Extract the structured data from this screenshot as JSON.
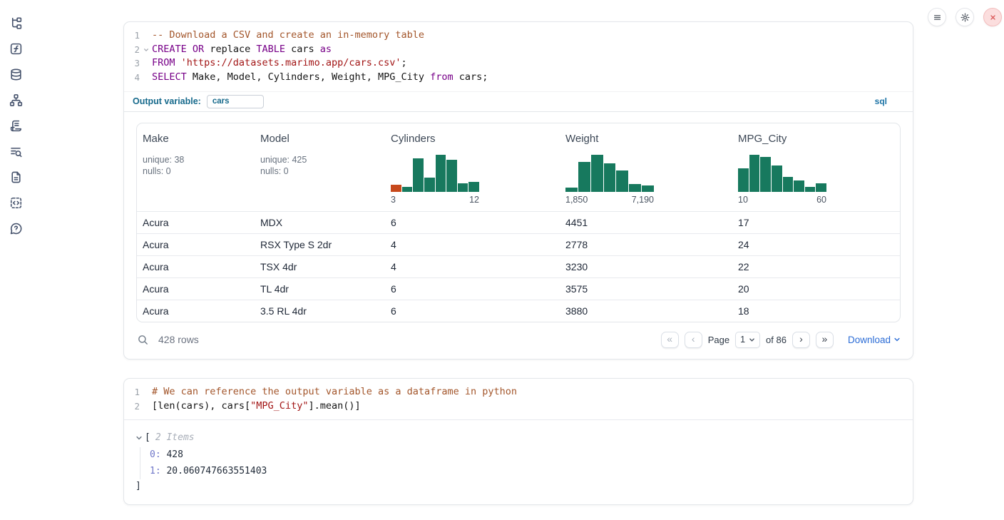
{
  "colors": {
    "accent_teal": "#176a8c",
    "hist_green": "#17795e",
    "hist_orange": "#c7491c",
    "link_blue": "#2b6cd6",
    "danger_red": "#d95454"
  },
  "sidebar": {
    "icons": [
      "file-tree-icon",
      "function-icon",
      "database-icon",
      "dependency-graph-icon",
      "logs-icon",
      "text-search-icon",
      "document-icon",
      "snippets-icon",
      "help-icon"
    ]
  },
  "topbar": {
    "icons": [
      "menu-icon",
      "settings-icon",
      "shutdown-icon"
    ]
  },
  "sql_cell": {
    "lines": [
      {
        "num": 1,
        "tokens": [
          {
            "c": "com",
            "t": "-- Download a CSV and create an in-memory table"
          }
        ]
      },
      {
        "num": 2,
        "fold": true,
        "tokens": [
          {
            "c": "kw",
            "t": "CREATE"
          },
          {
            "t": " "
          },
          {
            "c": "kw",
            "t": "OR"
          },
          {
            "t": " replace "
          },
          {
            "c": "kw",
            "t": "TABLE"
          },
          {
            "t": " cars "
          },
          {
            "c": "kw",
            "t": "as"
          }
        ]
      },
      {
        "num": 3,
        "tokens": [
          {
            "c": "kw",
            "t": "FROM"
          },
          {
            "t": " "
          },
          {
            "c": "str",
            "t": "'https://datasets.marimo.app/cars.csv'"
          },
          {
            "t": ";"
          }
        ]
      },
      {
        "num": 4,
        "tokens": [
          {
            "c": "kw",
            "t": "SELECT"
          },
          {
            "t": " Make, Model, Cylinders, Weight, MPG_City "
          },
          {
            "c": "kw",
            "t": "from"
          },
          {
            "t": " cars;"
          }
        ]
      }
    ],
    "output_variable_label": "Output variable:",
    "output_variable_value": "cars",
    "language_badge": "sql"
  },
  "chart_data": [
    {
      "type": "bar",
      "subtype": "histogram",
      "column": "Cylinders",
      "tick_labels": [
        "3",
        "12"
      ],
      "x_min": 3,
      "x_max": 12,
      "relative_heights": [
        0.19,
        0.13,
        0.9,
        0.39,
        1.0,
        0.87,
        0.23,
        0.27
      ],
      "bar_colors": [
        "#c7491c",
        "#17795e",
        "#17795e",
        "#17795e",
        "#17795e",
        "#17795e",
        "#17795e",
        "#17795e"
      ]
    },
    {
      "type": "bar",
      "subtype": "histogram",
      "column": "Weight",
      "tick_labels": [
        "1,850",
        "7,190"
      ],
      "x_min": 1850,
      "x_max": 7190,
      "relative_heights": [
        0.12,
        0.8,
        1.0,
        0.77,
        0.57,
        0.2,
        0.17
      ],
      "bar_colors": [
        "#17795e",
        "#17795e",
        "#17795e",
        "#17795e",
        "#17795e",
        "#17795e",
        "#17795e"
      ]
    },
    {
      "type": "bar",
      "subtype": "histogram",
      "column": "MPG_City",
      "tick_labels": [
        "10",
        "60"
      ],
      "x_min": 10,
      "x_max": 60,
      "relative_heights": [
        0.63,
        1.0,
        0.93,
        0.7,
        0.41,
        0.31,
        0.13,
        0.22
      ],
      "bar_colors": [
        "#17795e",
        "#17795e",
        "#17795e",
        "#17795e",
        "#17795e",
        "#17795e",
        "#17795e",
        "#17795e"
      ]
    }
  ],
  "table": {
    "columns": [
      {
        "name": "Make",
        "stats": [
          "unique: 38",
          "nulls: 0"
        ]
      },
      {
        "name": "Model",
        "stats": [
          "unique: 425",
          "nulls: 0"
        ]
      },
      {
        "name": "Cylinders",
        "hist": 0
      },
      {
        "name": "Weight",
        "hist": 1
      },
      {
        "name": "MPG_City",
        "hist": 2
      }
    ],
    "rows": [
      [
        "Acura",
        "MDX",
        "6",
        "4451",
        "17"
      ],
      [
        "Acura",
        "RSX Type S 2dr",
        "4",
        "2778",
        "24"
      ],
      [
        "Acura",
        "TSX 4dr",
        "4",
        "3230",
        "22"
      ],
      [
        "Acura",
        "TL 4dr",
        "6",
        "3575",
        "20"
      ],
      [
        "Acura",
        "3.5 RL 4dr",
        "6",
        "3880",
        "18"
      ]
    ],
    "footer": {
      "row_count": "428 rows",
      "first": "«",
      "prev": "‹",
      "next": "›",
      "last": "»",
      "page_label": "Page",
      "page_value": "1",
      "total_label": "of 86",
      "download_label": "Download"
    }
  },
  "python_cell": {
    "lines": [
      {
        "num": 1,
        "tokens": [
          {
            "c": "com",
            "t": "# We can reference the output variable as a dataframe in python"
          }
        ]
      },
      {
        "num": 2,
        "tokens": [
          {
            "t": "[len(cars), cars["
          },
          {
            "c": "str",
            "t": "\"MPG_City\""
          },
          {
            "t": "].mean()]"
          }
        ]
      }
    ]
  },
  "python_output": {
    "open_bracket": "[",
    "items_label": "2 Items",
    "entries": [
      {
        "key": "0:",
        "value": "428"
      },
      {
        "key": "1:",
        "value": "20.060747663551403"
      }
    ],
    "close_bracket": "]"
  }
}
